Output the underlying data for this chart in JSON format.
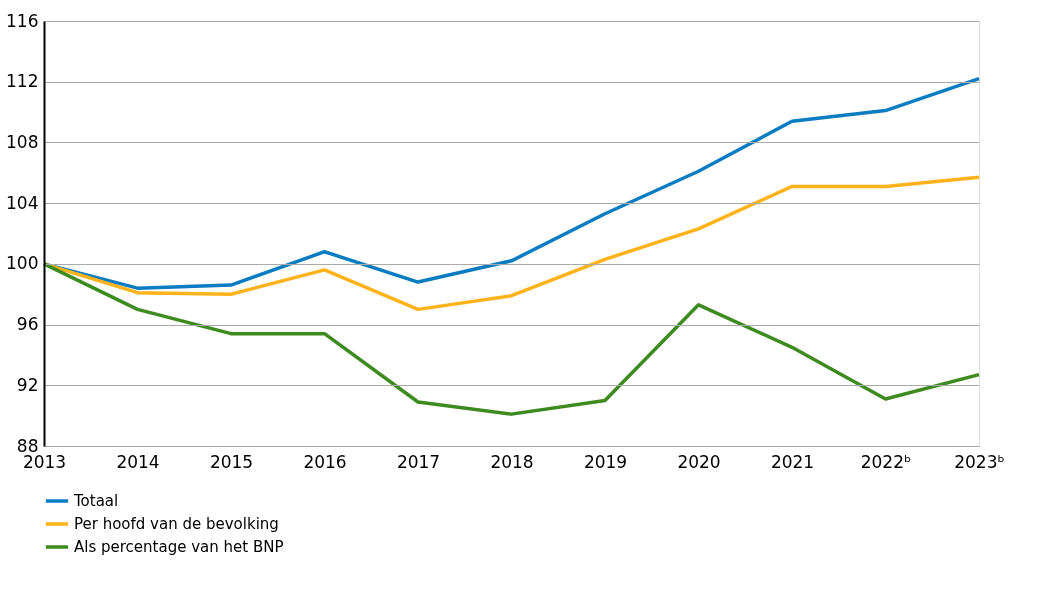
{
  "chart_data": {
    "type": "line",
    "categories": [
      "2013",
      "2014",
      "2015",
      "2016",
      "2017",
      "2018",
      "2019",
      "2020",
      "2021",
      "2022ᵇ",
      "2023ᵇ"
    ],
    "series": [
      {
        "name": "Totaal",
        "color": "#0a7cc2",
        "values": [
          100,
          98.4,
          98.6,
          100.8,
          98.8,
          100.2,
          103.3,
          106.1,
          109.4,
          110.1,
          112.2
        ]
      },
      {
        "name": "Per hoofd van de bevolking",
        "color": "#ffb21a",
        "values": [
          100,
          98.1,
          98.0,
          99.6,
          97.0,
          97.9,
          100.3,
          102.3,
          105.1,
          105.1,
          105.7
        ]
      },
      {
        "name": "Als percentage van het BNP",
        "color": "#3d8a1f",
        "values": [
          100,
          97.0,
          95.4,
          95.4,
          90.9,
          90.1,
          91.0,
          97.3,
          94.5,
          91.1,
          92.7
        ]
      }
    ],
    "ylim": [
      88,
      116
    ],
    "yticks": [
      88,
      92,
      96,
      100,
      104,
      108,
      112,
      116
    ],
    "grid": "y",
    "legend": "bottom",
    "line_style": "solid"
  }
}
